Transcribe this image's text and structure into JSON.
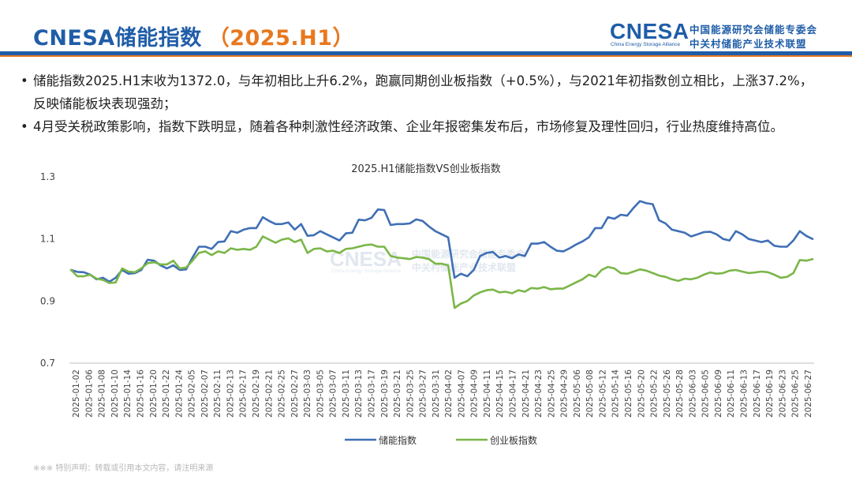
{
  "header": {
    "title": "CNESA储能指数",
    "title_period": "（2025.H1）",
    "logo_wordmark": "CNESA",
    "logo_subtitle": "China Energy Storage Alliance",
    "logo_cn_line1": "中国能源研究会储能专委会",
    "logo_cn_line2": "中关村储能产业技术联盟"
  },
  "bullets": [
    "储能指数2025.H1末收为1372.0，与年初相比上升6.2%，跑赢同期创业板指数（+0.5%），与2021年初指数创立相比，上涨37.2%，反映储能板块表现强劲；",
    "4月受关税政策影响，指数下跌明显，随着各种刺激性经济政策、企业年报密集发布后，市场修复及理性回归，行业热度维持高位。"
  ],
  "bullet_marker": "•",
  "watermark": {
    "wordmark": "CNESA",
    "subtitle": "China Energy Storage Alliance",
    "cn_line1": "中国能源研究会储能专委会",
    "cn_line2": "中关村储能产业技术联盟"
  },
  "footer": "※※※ 特别声明：转载或引用本文内容，请注明来源",
  "colors": {
    "blue": "#3f6fb5",
    "green": "#7ab648",
    "brand": "#1f5da8",
    "accent": "#e8781e"
  },
  "chart_data": {
    "type": "line",
    "title": "2025.H1储能指数VS创业板指数",
    "xlabel": "",
    "ylabel": "",
    "ylim": [
      0.7,
      1.3
    ],
    "yticks": [
      0.7,
      0.9,
      1.1,
      1.3
    ],
    "ytick_labels": [
      "0.7",
      "0.9",
      "1.1",
      "1.3"
    ],
    "x_tick_labels": [
      "2025-01-02",
      "2025-01-06",
      "2025-01-08",
      "2025-01-10",
      "2025-01-14",
      "2025-01-16",
      "2025-01-20",
      "2025-01-22",
      "2025-01-24",
      "2025-02-05",
      "2025-02-07",
      "2025-02-11",
      "2025-02-13",
      "2025-02-17",
      "2025-02-19",
      "2025-02-21",
      "2025-02-25",
      "2025-02-27",
      "2025-03-03",
      "2025-03-05",
      "2025-03-07",
      "2025-03-11",
      "2025-03-13",
      "2025-03-17",
      "2025-03-19",
      "2025-03-21",
      "2025-03-25",
      "2025-03-27",
      "2025-03-31",
      "2025-04-02",
      "2025-04-07",
      "2025-04-09",
      "2025-04-11",
      "2025-04-15",
      "2025-04-17",
      "2025-04-21",
      "2025-04-23",
      "2025-04-25",
      "2025-04-29",
      "2025-05-06",
      "2025-05-08",
      "2025-05-12",
      "2025-05-14",
      "2025-05-16",
      "2025-05-20",
      "2025-05-22",
      "2025-05-26",
      "2025-05-28",
      "2025-06-03",
      "2025-06-05",
      "2025-06-09",
      "2025-06-11",
      "2025-06-13",
      "2025-06-17",
      "2025-06-19",
      "2025-06-23",
      "2025-06-25",
      "2025-06-27"
    ],
    "series": [
      {
        "name": "储能指数",
        "color": "#3f6fb5",
        "values": [
          1.0,
          0.994,
          0.993,
          0.985,
          0.97,
          0.975,
          0.962,
          0.975,
          1.0,
          0.988,
          0.99,
          1.0,
          1.033,
          1.03,
          1.015,
          1.005,
          1.015,
          1.0,
          1.002,
          1.04,
          1.075,
          1.075,
          1.068,
          1.09,
          1.092,
          1.125,
          1.12,
          1.13,
          1.135,
          1.135,
          1.17,
          1.158,
          1.148,
          1.148,
          1.153,
          1.13,
          1.148,
          1.11,
          1.112,
          1.125,
          1.115,
          1.105,
          1.095,
          1.118,
          1.12,
          1.162,
          1.16,
          1.168,
          1.195,
          1.193,
          1.145,
          1.148,
          1.148,
          1.15,
          1.163,
          1.158,
          1.14,
          1.125,
          1.115,
          1.105,
          0.975,
          0.988,
          0.98,
          1.0,
          1.045,
          1.055,
          1.058,
          1.04,
          1.045,
          1.038,
          1.05,
          1.045,
          1.085,
          1.085,
          1.09,
          1.075,
          1.062,
          1.06,
          1.07,
          1.082,
          1.092,
          1.105,
          1.135,
          1.135,
          1.17,
          1.165,
          1.178,
          1.175,
          1.2,
          1.222,
          1.215,
          1.212,
          1.16,
          1.15,
          1.13,
          1.125,
          1.12,
          1.108,
          1.115,
          1.122,
          1.123,
          1.115,
          1.1,
          1.095,
          1.125,
          1.115,
          1.1,
          1.095,
          1.09,
          1.095,
          1.078,
          1.075,
          1.075,
          1.095,
          1.125,
          1.11,
          1.1
        ]
      },
      {
        "name": "创业板指数",
        "color": "#7ab648",
        "values": [
          1.0,
          0.98,
          0.98,
          0.985,
          0.972,
          0.968,
          0.958,
          0.96,
          1.005,
          0.995,
          0.993,
          1.005,
          1.022,
          1.025,
          1.018,
          1.018,
          1.03,
          1.005,
          1.008,
          1.03,
          1.055,
          1.06,
          1.048,
          1.06,
          1.055,
          1.07,
          1.065,
          1.068,
          1.065,
          1.075,
          1.108,
          1.098,
          1.088,
          1.098,
          1.102,
          1.09,
          1.098,
          1.055,
          1.068,
          1.07,
          1.06,
          1.062,
          1.055,
          1.068,
          1.07,
          1.075,
          1.08,
          1.082,
          1.075,
          1.075,
          1.045,
          1.04,
          1.038,
          1.035,
          1.042,
          1.04,
          1.035,
          1.02,
          1.02,
          1.015,
          0.878,
          0.892,
          0.9,
          0.918,
          0.928,
          0.935,
          0.937,
          0.928,
          0.93,
          0.925,
          0.935,
          0.93,
          0.942,
          0.94,
          0.945,
          0.938,
          0.94,
          0.94,
          0.95,
          0.96,
          0.97,
          0.985,
          0.978,
          1.0,
          1.01,
          1.005,
          0.99,
          0.988,
          0.995,
          1.002,
          0.998,
          0.99,
          0.982,
          0.978,
          0.97,
          0.965,
          0.972,
          0.97,
          0.975,
          0.985,
          0.992,
          0.988,
          0.99,
          0.998,
          1.0,
          0.995,
          0.99,
          0.992,
          0.995,
          0.993,
          0.985,
          0.975,
          0.978,
          0.99,
          1.032,
          1.03,
          1.035
        ]
      }
    ],
    "legend_position": "bottom",
    "grid": false
  }
}
